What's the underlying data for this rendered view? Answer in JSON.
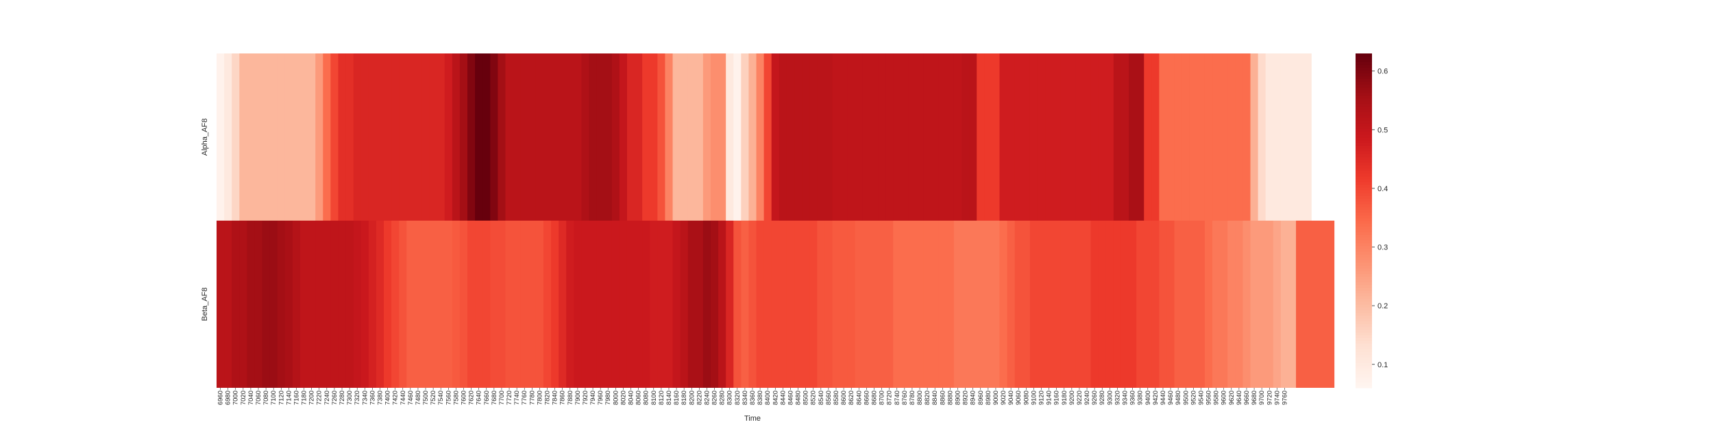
{
  "chart_data": {
    "type": "heatmap",
    "xlabel": "Time",
    "ylabel": "",
    "rows": [
      "Alpha_AF8",
      "Beta_AF8"
    ],
    "x": [
      6960,
      6980,
      7000,
      7020,
      7040,
      7060,
      7080,
      7100,
      7120,
      7140,
      7160,
      7180,
      7200,
      7220,
      7240,
      7260,
      7280,
      7300,
      7320,
      7340,
      7360,
      7380,
      7400,
      7420,
      7440,
      7460,
      7480,
      7500,
      7520,
      7540,
      7560,
      7580,
      7600,
      7620,
      7640,
      7660,
      7680,
      7700,
      7720,
      7740,
      7760,
      7780,
      7800,
      7820,
      7840,
      7860,
      7880,
      7900,
      7920,
      7940,
      7960,
      7980,
      8000,
      8020,
      8040,
      8060,
      8080,
      8100,
      8120,
      8140,
      8160,
      8180,
      8200,
      8220,
      8240,
      8260,
      8280,
      8300,
      8320,
      8340,
      8360,
      8380,
      8400,
      8420,
      8440,
      8460,
      8480,
      8500,
      8520,
      8540,
      8560,
      8580,
      8600,
      8620,
      8640,
      8660,
      8680,
      8700,
      8720,
      8740,
      8760,
      8780,
      8800,
      8820,
      8840,
      8860,
      8880,
      8900,
      8920,
      8940,
      8960,
      8980,
      9000,
      9020,
      9040,
      9060,
      9080,
      9100,
      9120,
      9140,
      9160,
      9180,
      9200,
      9220,
      9240,
      9260,
      9280,
      9300,
      9320,
      9340,
      9360,
      9380,
      9400,
      9420,
      9440,
      9460,
      9480,
      9500,
      9520,
      9540,
      9560,
      9580,
      9600,
      9620,
      9640,
      9660,
      9680,
      9700,
      9720,
      9740,
      9760
    ],
    "values": [
      [
        0.07,
        0.1,
        0.15,
        0.21,
        0.21,
        0.21,
        0.21,
        0.21,
        0.21,
        0.21,
        0.21,
        0.21,
        0.21,
        0.26,
        0.34,
        0.4,
        0.44,
        0.44,
        0.46,
        0.46,
        0.46,
        0.46,
        0.46,
        0.46,
        0.46,
        0.46,
        0.46,
        0.46,
        0.46,
        0.46,
        0.48,
        0.52,
        0.56,
        0.6,
        0.63,
        0.63,
        0.6,
        0.56,
        0.52,
        0.52,
        0.52,
        0.52,
        0.52,
        0.52,
        0.52,
        0.52,
        0.52,
        0.52,
        0.54,
        0.56,
        0.56,
        0.56,
        0.54,
        0.5,
        0.46,
        0.46,
        0.42,
        0.42,
        0.38,
        0.3,
        0.21,
        0.21,
        0.21,
        0.21,
        0.26,
        0.28,
        0.28,
        0.1,
        0.07,
        0.16,
        0.22,
        0.3,
        0.4,
        0.5,
        0.52,
        0.52,
        0.52,
        0.52,
        0.52,
        0.52,
        0.52,
        0.51,
        0.51,
        0.51,
        0.51,
        0.51,
        0.51,
        0.51,
        0.51,
        0.51,
        0.51,
        0.51,
        0.51,
        0.51,
        0.51,
        0.51,
        0.51,
        0.51,
        0.52,
        0.52,
        0.42,
        0.42,
        0.42,
        0.48,
        0.48,
        0.48,
        0.48,
        0.48,
        0.48,
        0.48,
        0.48,
        0.48,
        0.48,
        0.48,
        0.48,
        0.48,
        0.48,
        0.48,
        0.52,
        0.52,
        0.55,
        0.55,
        0.42,
        0.42,
        0.34,
        0.34,
        0.34,
        0.34,
        0.34,
        0.34,
        0.34,
        0.34,
        0.34,
        0.34,
        0.34,
        0.34,
        0.22,
        0.14,
        0.1,
        0.1,
        0.1,
        0.1,
        0.1,
        0.1
      ],
      [
        0.52,
        0.52,
        0.54,
        0.54,
        0.56,
        0.56,
        0.57,
        0.57,
        0.56,
        0.55,
        0.53,
        0.51,
        0.51,
        0.51,
        0.51,
        0.51,
        0.51,
        0.51,
        0.5,
        0.49,
        0.47,
        0.45,
        0.42,
        0.4,
        0.38,
        0.36,
        0.36,
        0.36,
        0.36,
        0.36,
        0.36,
        0.37,
        0.38,
        0.4,
        0.4,
        0.4,
        0.39,
        0.39,
        0.38,
        0.38,
        0.38,
        0.38,
        0.38,
        0.4,
        0.42,
        0.45,
        0.48,
        0.49,
        0.49,
        0.49,
        0.49,
        0.49,
        0.49,
        0.49,
        0.49,
        0.49,
        0.49,
        0.48,
        0.48,
        0.48,
        0.5,
        0.52,
        0.55,
        0.55,
        0.57,
        0.56,
        0.52,
        0.46,
        0.38,
        0.36,
        0.38,
        0.4,
        0.4,
        0.4,
        0.4,
        0.4,
        0.4,
        0.4,
        0.4,
        0.38,
        0.38,
        0.37,
        0.37,
        0.37,
        0.36,
        0.36,
        0.36,
        0.36,
        0.36,
        0.34,
        0.34,
        0.34,
        0.34,
        0.34,
        0.34,
        0.34,
        0.34,
        0.32,
        0.32,
        0.32,
        0.32,
        0.32,
        0.32,
        0.34,
        0.36,
        0.38,
        0.38,
        0.4,
        0.4,
        0.4,
        0.4,
        0.4,
        0.4,
        0.4,
        0.4,
        0.42,
        0.42,
        0.42,
        0.42,
        0.42,
        0.42,
        0.4,
        0.4,
        0.4,
        0.38,
        0.38,
        0.36,
        0.36,
        0.36,
        0.36,
        0.34,
        0.32,
        0.32,
        0.3,
        0.3,
        0.28,
        0.26,
        0.26,
        0.26,
        0.24,
        0.22,
        0.22,
        0.36,
        0.36,
        0.36,
        0.36,
        0.36
      ]
    ],
    "colormap": "Reds",
    "colorbar": {
      "vmin": 0.06,
      "vmax": 0.63,
      "ticks": [
        0.1,
        0.2,
        0.3,
        0.4,
        0.5,
        0.6
      ],
      "tick_labels": [
        "0.1",
        "0.2",
        "0.3",
        "0.4",
        "0.5",
        "0.6"
      ]
    },
    "grid": false,
    "legend": "colorbar-right"
  }
}
